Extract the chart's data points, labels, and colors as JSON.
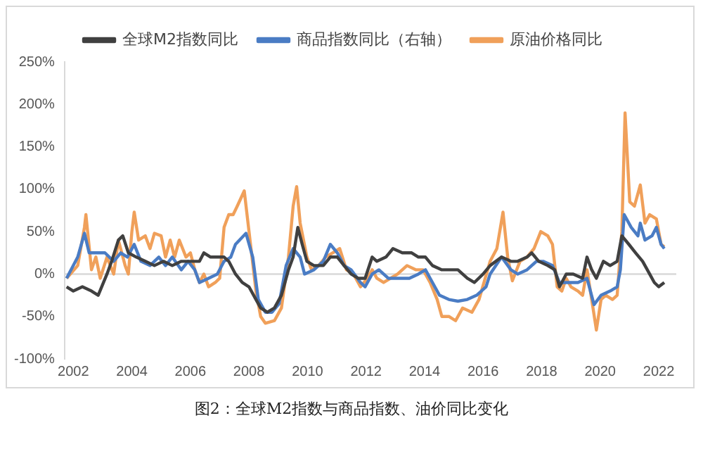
{
  "chart_data": {
    "type": "line",
    "legend": "top",
    "marker": "none",
    "line_style": "solid",
    "grid": false,
    "xlim": [
      2001.7,
      2022.6
    ],
    "xticks": [
      2002,
      2004,
      2006,
      2008,
      2010,
      2012,
      2014,
      2016,
      2018,
      2020,
      2022
    ],
    "ylim": [
      -100,
      250
    ],
    "yticks": [
      {
        "value": -100,
        "label": "-100%"
      },
      {
        "value": -50,
        "label": "-50%"
      },
      {
        "value": 0,
        "label": "0%"
      },
      {
        "value": 50,
        "label": "50%"
      },
      {
        "value": 100,
        "label": "100%"
      },
      {
        "value": 150,
        "label": "150%"
      },
      {
        "value": 200,
        "label": "200%"
      },
      {
        "value": 250,
        "label": "250%"
      }
    ],
    "ref_lines": [
      {
        "axis": "y",
        "value": 0,
        "color": "#d9d9d9"
      }
    ],
    "annotations": [
      "图2：全球M2指数与商品指数、油价同比变化"
    ],
    "series": [
      {
        "name": "全球M2指数同比",
        "color": "#404040",
        "x": [
          2001.77,
          2002.0,
          2002.31,
          2002.62,
          2002.85,
          2003.15,
          2003.31,
          2003.54,
          2003.69,
          2003.88,
          2004.15,
          2004.46,
          2004.77,
          2005.08,
          2005.38,
          2005.69,
          2006.0,
          2006.31,
          2006.46,
          2006.69,
          2006.92,
          2007.15,
          2007.31,
          2007.54,
          2007.77,
          2008.0,
          2008.24,
          2008.4,
          2008.63,
          2008.87,
          2009.11,
          2009.35,
          2009.51,
          2009.67,
          2009.82,
          2009.98,
          2010.22,
          2010.54,
          2010.78,
          2011.02,
          2011.25,
          2011.49,
          2011.73,
          2011.97,
          2012.21,
          2012.37,
          2012.68,
          2012.92,
          2013.24,
          2013.56,
          2013.79,
          2014.03,
          2014.27,
          2014.59,
          2014.9,
          2015.14,
          2015.46,
          2015.7,
          2016.0,
          2016.24,
          2016.63,
          2016.95,
          2017.18,
          2017.5,
          2017.66,
          2017.9,
          2018.21,
          2018.45,
          2018.61,
          2018.84,
          2019.08,
          2019.4,
          2019.55,
          2019.71,
          2019.87,
          2020.11,
          2020.34,
          2020.58,
          2020.74,
          2020.98,
          2021.21,
          2021.45,
          2021.69,
          2021.85,
          2022.0,
          2022.19
        ],
        "values": [
          -15,
          -20,
          -15,
          -20,
          -25,
          0,
          15,
          40,
          45,
          25,
          20,
          15,
          10,
          15,
          10,
          15,
          15,
          15,
          25,
          20,
          20,
          20,
          15,
          0,
          -10,
          -15,
          -30,
          -40,
          -45,
          -40,
          -25,
          5,
          20,
          55,
          35,
          15,
          10,
          10,
          20,
          20,
          10,
          0,
          -5,
          -5,
          20,
          15,
          20,
          30,
          25,
          25,
          20,
          20,
          10,
          5,
          5,
          5,
          -5,
          -10,
          0,
          10,
          20,
          15,
          15,
          20,
          25,
          15,
          10,
          5,
          -15,
          0,
          0,
          -5,
          20,
          5,
          -5,
          15,
          10,
          15,
          45,
          35,
          25,
          15,
          0,
          -10,
          -15,
          -10
        ]
      },
      {
        "name": "商品指数同比（右轴）",
        "color": "#4a7cc4",
        "x": [
          2001.77,
          2002.15,
          2002.38,
          2002.54,
          2002.77,
          2003.08,
          2003.38,
          2003.62,
          2003.85,
          2004.08,
          2004.31,
          2004.62,
          2004.92,
          2005.15,
          2005.38,
          2005.69,
          2005.92,
          2006.15,
          2006.31,
          2006.62,
          2006.92,
          2007.15,
          2007.38,
          2007.54,
          2007.9,
          2008.13,
          2008.32,
          2008.56,
          2008.79,
          2009.03,
          2009.27,
          2009.51,
          2009.75,
          2009.9,
          2010.22,
          2010.54,
          2010.78,
          2011.02,
          2011.25,
          2011.49,
          2011.81,
          2011.97,
          2012.21,
          2012.44,
          2012.76,
          2013.08,
          2013.48,
          2013.79,
          2014.03,
          2014.27,
          2014.51,
          2014.83,
          2015.14,
          2015.46,
          2015.78,
          2016.1,
          2016.24,
          2016.63,
          2016.95,
          2017.18,
          2017.5,
          2017.82,
          2018.05,
          2018.37,
          2018.61,
          2018.92,
          2019.24,
          2019.55,
          2019.79,
          2020.03,
          2020.34,
          2020.58,
          2020.69,
          2020.82,
          2021.06,
          2021.29,
          2021.37,
          2021.53,
          2021.77,
          2021.92,
          2022.08,
          2022.19
        ],
        "values": [
          -5,
          20,
          48,
          25,
          25,
          25,
          15,
          25,
          20,
          35,
          15,
          10,
          20,
          10,
          20,
          5,
          15,
          5,
          -10,
          -5,
          0,
          15,
          20,
          35,
          48,
          20,
          -30,
          -45,
          -45,
          -35,
          10,
          30,
          20,
          0,
          5,
          15,
          35,
          25,
          10,
          5,
          -10,
          -15,
          0,
          5,
          -5,
          -5,
          -5,
          0,
          5,
          -10,
          -25,
          -30,
          -32,
          -30,
          -25,
          -15,
          0,
          20,
          5,
          0,
          5,
          15,
          15,
          10,
          -10,
          -10,
          -10,
          -5,
          -36,
          -25,
          -20,
          -15,
          5,
          70,
          55,
          45,
          60,
          40,
          45,
          55,
          35,
          30
        ]
      },
      {
        "name": "原油价格同比",
        "color": "#f0a05a",
        "x": [
          2001.77,
          2002.15,
          2002.38,
          2002.43,
          2002.62,
          2002.77,
          2002.92,
          2003.15,
          2003.38,
          2003.54,
          2003.77,
          2003.88,
          2004.0,
          2004.08,
          2004.23,
          2004.46,
          2004.62,
          2004.77,
          2005.0,
          2005.15,
          2005.31,
          2005.46,
          2005.62,
          2005.85,
          2006.0,
          2006.15,
          2006.31,
          2006.46,
          2006.62,
          2006.85,
          2007.0,
          2007.15,
          2007.31,
          2007.46,
          2007.6,
          2007.84,
          2008.24,
          2008.4,
          2008.56,
          2008.87,
          2009.11,
          2009.35,
          2009.51,
          2009.63,
          2009.75,
          2009.98,
          2010.14,
          2010.38,
          2010.62,
          2010.86,
          2011.1,
          2011.33,
          2011.57,
          2011.81,
          2012.05,
          2012.21,
          2012.37,
          2012.6,
          2012.84,
          2013.08,
          2013.4,
          2013.71,
          2013.95,
          2014.19,
          2014.43,
          2014.59,
          2014.83,
          2015.06,
          2015.3,
          2015.62,
          2015.86,
          2016.24,
          2016.47,
          2016.68,
          2016.84,
          2017.0,
          2017.26,
          2017.5,
          2017.74,
          2017.97,
          2018.21,
          2018.37,
          2018.53,
          2018.69,
          2018.84,
          2019.0,
          2019.24,
          2019.4,
          2019.55,
          2019.71,
          2019.87,
          2020.03,
          2020.19,
          2020.42,
          2020.58,
          2020.74,
          2020.85,
          2021.01,
          2021.17,
          2021.37,
          2021.53,
          2021.69,
          2021.92,
          2022.08,
          2022.19
        ],
        "values": [
          -5,
          10,
          55,
          70,
          5,
          20,
          -5,
          20,
          0,
          40,
          10,
          0,
          50,
          73,
          40,
          45,
          30,
          48,
          45,
          20,
          40,
          20,
          40,
          20,
          25,
          5,
          -10,
          0,
          -15,
          -10,
          -5,
          55,
          70,
          70,
          80,
          98,
          -20,
          -50,
          -58,
          -55,
          -40,
          20,
          80,
          103,
          60,
          20,
          5,
          10,
          20,
          25,
          30,
          5,
          0,
          -15,
          -5,
          5,
          -5,
          -10,
          -5,
          0,
          10,
          5,
          5,
          -10,
          -30,
          -50,
          -50,
          -55,
          -40,
          -45,
          -30,
          15,
          30,
          73,
          20,
          -8,
          15,
          20,
          30,
          50,
          45,
          35,
          -15,
          -20,
          -5,
          -15,
          -20,
          -25,
          5,
          -30,
          -66,
          -30,
          -25,
          -30,
          -25,
          50,
          190,
          85,
          80,
          105,
          60,
          70,
          65,
          35,
          32
        ]
      }
    ]
  }
}
